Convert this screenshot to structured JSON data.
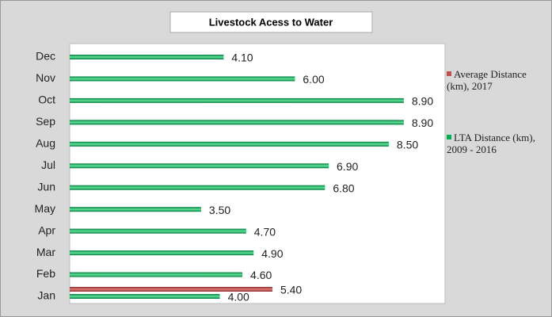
{
  "chart_data": {
    "type": "barh",
    "title": "Livestock Acess to Water",
    "categories": [
      "Jan",
      "Feb",
      "Mar",
      "Apr",
      "May",
      "Jun",
      "Jul",
      "Aug",
      "Sep",
      "Oct",
      "Nov",
      "Dec"
    ],
    "series": [
      {
        "name": "Average Distance (km), 2017",
        "color": "#c0504d",
        "values": [
          5.4,
          null,
          null,
          null,
          null,
          null,
          null,
          null,
          null,
          null,
          null,
          null
        ],
        "value_labels": [
          "5.40",
          null,
          null,
          null,
          null,
          null,
          null,
          null,
          null,
          null,
          null,
          null
        ]
      },
      {
        "name": "LTA Distance (km), 2009 - 2016",
        "color": "#00b050",
        "values": [
          4.0,
          4.6,
          4.9,
          4.7,
          3.5,
          6.8,
          6.9,
          8.5,
          8.9,
          8.9,
          6.0,
          4.1
        ],
        "value_labels": [
          "4.00",
          "4.60",
          "4.90",
          "4.70",
          "3.50",
          "6.80",
          "6.90",
          "8.50",
          "8.90",
          "8.90",
          "6.00",
          "4.10"
        ]
      }
    ],
    "xlim": [
      0,
      10
    ]
  }
}
